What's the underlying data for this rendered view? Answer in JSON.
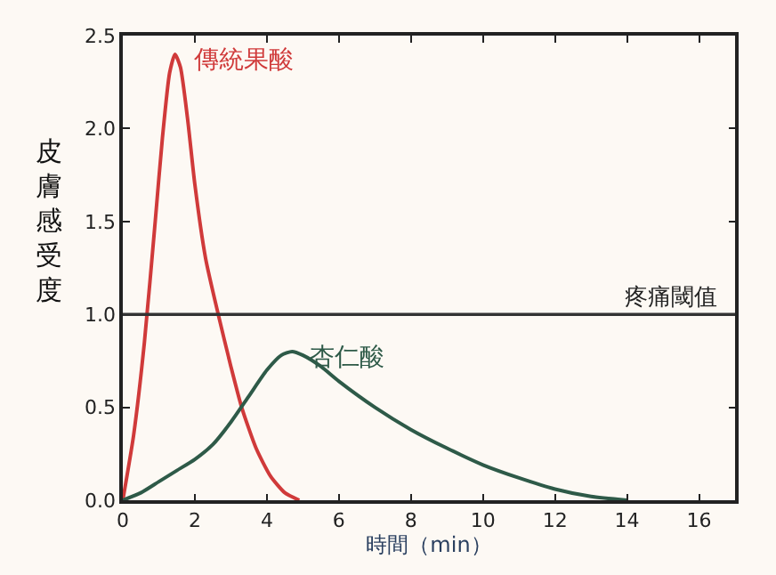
{
  "chart_data": {
    "type": "line",
    "xlabel": "時間（min）",
    "ylabel": "皮膚感受度",
    "xlim": [
      0,
      17
    ],
    "xticks": [
      0,
      2,
      4,
      6,
      8,
      10,
      12,
      14,
      16
    ],
    "ylim": [
      0,
      2.5
    ],
    "yticks": [
      {
        "value": 0,
        "label": "0.0"
      },
      {
        "value": 0.5,
        "label": "0.5"
      },
      {
        "value": 1,
        "label": "1.0"
      },
      {
        "value": 1.5,
        "label": "1.5"
      },
      {
        "value": 2,
        "label": "2.0"
      },
      {
        "value": 2.5,
        "label": "2.5"
      }
    ],
    "series": [
      {
        "name": "傳統果酸",
        "color": "#d03a3a",
        "x": [
          0,
          0.3,
          0.6,
          0.9,
          1.1,
          1.3,
          1.45,
          1.6,
          1.8,
          2.0,
          2.3,
          2.65,
          3.0,
          3.3,
          3.7,
          4.1,
          4.5,
          4.9
        ],
        "values": [
          0,
          0.35,
          0.85,
          1.5,
          1.95,
          2.3,
          2.4,
          2.33,
          2.05,
          1.7,
          1.3,
          1.0,
          0.72,
          0.5,
          0.28,
          0.13,
          0.04,
          0
        ]
      },
      {
        "name": "杏仁酸",
        "color": "#2e5a48",
        "x": [
          0,
          0.5,
          1,
          1.5,
          2,
          2.5,
          3,
          3.5,
          4,
          4.4,
          4.7,
          5,
          5.5,
          6,
          7,
          8,
          9,
          10,
          11,
          12,
          13,
          14
        ],
        "values": [
          0,
          0.04,
          0.1,
          0.16,
          0.22,
          0.3,
          0.42,
          0.56,
          0.7,
          0.78,
          0.8,
          0.78,
          0.72,
          0.64,
          0.5,
          0.38,
          0.28,
          0.19,
          0.12,
          0.06,
          0.02,
          0
        ]
      }
    ],
    "ref_lines": [
      {
        "axis": "y",
        "value": 1.0,
        "label": "疼痛閾值",
        "color": "#333333"
      }
    ],
    "grid": false,
    "legend": false,
    "marker": "none",
    "line_style": "solid"
  }
}
